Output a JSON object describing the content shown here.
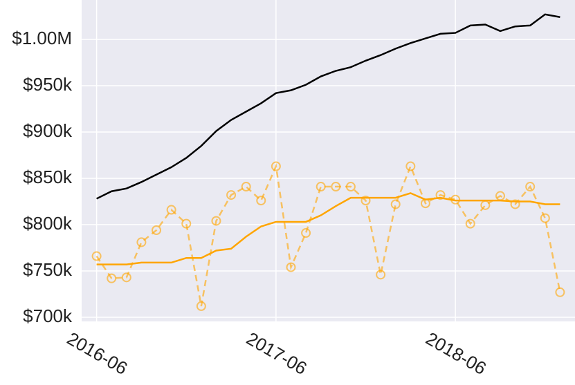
{
  "chart_data": {
    "type": "line",
    "x": [
      "2016-06",
      "2016-07",
      "2016-08",
      "2016-09",
      "2016-10",
      "2016-11",
      "2016-12",
      "2017-01",
      "2017-02",
      "2017-03",
      "2017-04",
      "2017-05",
      "2017-06",
      "2017-07",
      "2017-08",
      "2017-09",
      "2017-10",
      "2017-11",
      "2017-12",
      "2018-01",
      "2018-02",
      "2018-03",
      "2018-04",
      "2018-05",
      "2018-06",
      "2018-07",
      "2018-08",
      "2018-09",
      "2018-10",
      "2018-11",
      "2018-12",
      "2019-01"
    ],
    "series": [
      {
        "color": "#000000",
        "style": "solid",
        "markers": false,
        "values": [
          828000,
          836000,
          839000,
          846000,
          854000,
          862000,
          872000,
          885000,
          901000,
          913000,
          922000,
          931000,
          942000,
          945000,
          951000,
          960000,
          966000,
          970000,
          977000,
          983000,
          990000,
          996000,
          1001000,
          1006000,
          1007000,
          1015000,
          1016000,
          1009000,
          1014000,
          1015000,
          1027000,
          1024000
        ]
      },
      {
        "color": "#ffa500",
        "style": "solid",
        "markers": false,
        "values": [
          757000,
          757000,
          757000,
          759000,
          759000,
          759000,
          764000,
          764000,
          772000,
          774000,
          787000,
          798000,
          803000,
          803000,
          803000,
          810000,
          820000,
          829000,
          829000,
          829000,
          829000,
          834000,
          827000,
          829000,
          826000,
          826000,
          826000,
          826000,
          825000,
          825000,
          822000,
          822000
        ]
      },
      {
        "color": "#ffa500",
        "style": "dashed",
        "markers": true,
        "values": [
          766000,
          742000,
          743000,
          781000,
          794000,
          816000,
          801000,
          712000,
          804000,
          832000,
          841000,
          826000,
          863000,
          754000,
          791000,
          841000,
          841000,
          841000,
          826000,
          746000,
          822000,
          863000,
          823000,
          832000,
          827000,
          801000,
          821000,
          831000,
          822000,
          841000,
          807000,
          727000
        ]
      }
    ],
    "xlim": [
      "2016-05",
      "2019-02"
    ],
    "xticks": [
      "2016-06",
      "2017-06",
      "2018-06"
    ],
    "ylim": [
      695500,
      1042500
    ],
    "yticks": [
      {
        "value": 700000,
        "label": "$700k"
      },
      {
        "value": 750000,
        "label": "$750k"
      },
      {
        "value": 800000,
        "label": "$800k"
      },
      {
        "value": 850000,
        "label": "$850k"
      },
      {
        "value": 900000,
        "label": "$900k"
      },
      {
        "value": 950000,
        "label": "$950k"
      },
      {
        "value": 1000000,
        "label": "$1.00M"
      }
    ],
    "grid": true,
    "background": "#eaeaf2"
  }
}
